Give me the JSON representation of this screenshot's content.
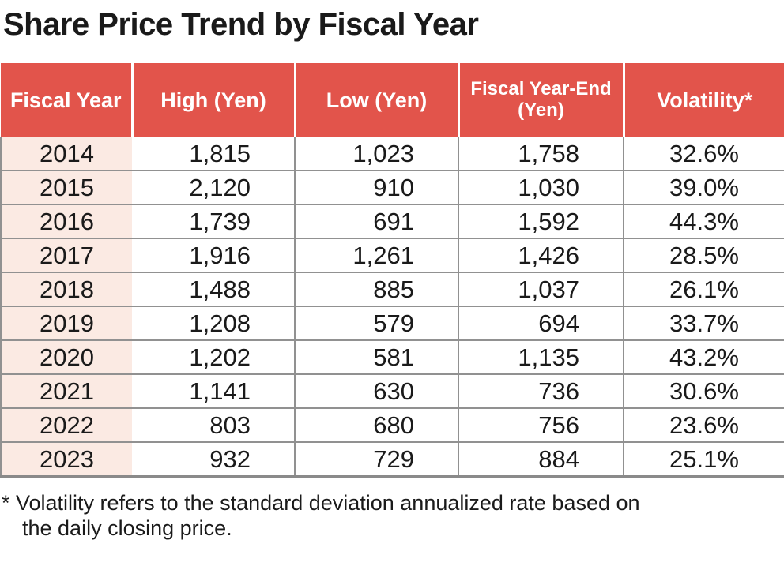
{
  "title": "Share Price Trend by Fiscal Year",
  "colors": {
    "header_bg": "#E2544B",
    "header_text": "#FFFFFF",
    "fiscal_year_column_bg": "#FBEAE3",
    "grid_line": "#919191",
    "body_text": "#1A1A1A"
  },
  "table": {
    "columns": [
      "Fiscal Year",
      "High (Yen)",
      "Low (Yen)",
      "Fiscal Year-End (Yen)",
      "Volatility*"
    ],
    "rows": [
      [
        "2014",
        "1,815",
        "1,023",
        "1,758",
        "32.6%"
      ],
      [
        "2015",
        "2,120",
        "910",
        "1,030",
        "39.0%"
      ],
      [
        "2016",
        "1,739",
        "691",
        "1,592",
        "44.3%"
      ],
      [
        "2017",
        "1,916",
        "1,261",
        "1,426",
        "28.5%"
      ],
      [
        "2018",
        "1,488",
        "885",
        "1,037",
        "26.1%"
      ],
      [
        "2019",
        "1,208",
        "579",
        "694",
        "33.7%"
      ],
      [
        "2020",
        "1,202",
        "581",
        "1,135",
        "43.2%"
      ],
      [
        "2021",
        "1,141",
        "630",
        "736",
        "30.6%"
      ],
      [
        "2022",
        "803",
        "680",
        "756",
        "23.6%"
      ],
      [
        "2023",
        "932",
        "729",
        "884",
        "25.1%"
      ]
    ]
  },
  "footnote": {
    "lines": [
      "* Volatility refers to the standard deviation annualized rate based on",
      "the daily closing price."
    ]
  },
  "chart_data": {
    "type": "table",
    "title": "Share Price Trend by Fiscal Year",
    "columns": [
      "Fiscal Year",
      "High (Yen)",
      "Low (Yen)",
      "Fiscal Year-End (Yen)",
      "Volatility*"
    ],
    "rows": [
      [
        2014,
        1815,
        1023,
        1758,
        32.6
      ],
      [
        2015,
        2120,
        910,
        1030,
        39.0
      ],
      [
        2016,
        1739,
        691,
        1592,
        44.3
      ],
      [
        2017,
        1916,
        1261,
        1426,
        28.5
      ],
      [
        2018,
        1488,
        885,
        1037,
        26.1
      ],
      [
        2019,
        1208,
        579,
        694,
        33.7
      ],
      [
        2020,
        1202,
        581,
        1135,
        43.2
      ],
      [
        2021,
        1141,
        630,
        736,
        30.6
      ],
      [
        2022,
        803,
        680,
        756,
        23.6
      ],
      [
        2023,
        932,
        729,
        884,
        25.1
      ]
    ],
    "volatility_unit": "%",
    "footnote": "* Volatility refers to the standard deviation annualized rate based on the daily closing price."
  }
}
